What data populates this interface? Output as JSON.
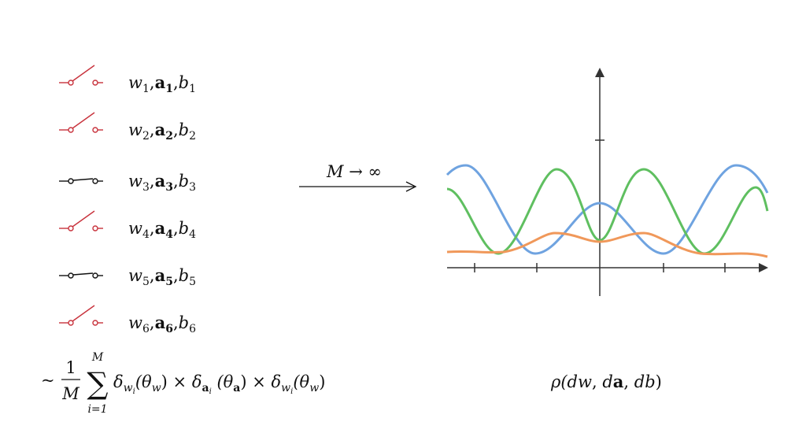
{
  "rows": [
    {
      "w": "w",
      "i": "1",
      "sep1": ",",
      "a": "a",
      "sep2": ",",
      "b": "b"
    },
    {
      "w": "w",
      "i": "2",
      "sep1": ",",
      "a": "a",
      "sep2": ",",
      "b": "b"
    },
    {
      "w": "w",
      "i": "3",
      "sep1": ",",
      "a": "a",
      "sep2": ",",
      "b": "b"
    },
    {
      "w": "w",
      "i": "4",
      "sep1": ",",
      "a": "a",
      "sep2": ",",
      "b": "b"
    },
    {
      "w": "w",
      "i": "5",
      "sep1": ",",
      "a": "a",
      "sep2": ",",
      "b": "b"
    },
    {
      "w": "w",
      "i": "6",
      "sep1": ",",
      "a": "a",
      "sep2": ",",
      "b": "b"
    }
  ],
  "arrow_label": "M → ∞",
  "formula": {
    "tilde": "~",
    "numerator": "1",
    "denominator": "M",
    "sum": "∑",
    "sum_top": "M",
    "sum_bottom": "i=1",
    "terms": [
      {
        "delta": "δ",
        "sub": "w",
        "subsub": "i",
        "open": "(θ",
        "argsub": "w",
        "close": ")"
      },
      {
        "delta": "δ",
        "sub": "a",
        "subsub": "i",
        "open": "  (θ",
        "argsub": "a",
        "close": ")"
      },
      {
        "delta": "δ",
        "sub": "w",
        "subsub": "i",
        "open": "(θ",
        "argsub": "w",
        "close": ")"
      }
    ],
    "times": " × "
  },
  "measure": [
    "ρ(",
    "d",
    "w",
    ", ",
    "d",
    "a",
    ", ",
    "d",
    "b",
    ")"
  ]
}
